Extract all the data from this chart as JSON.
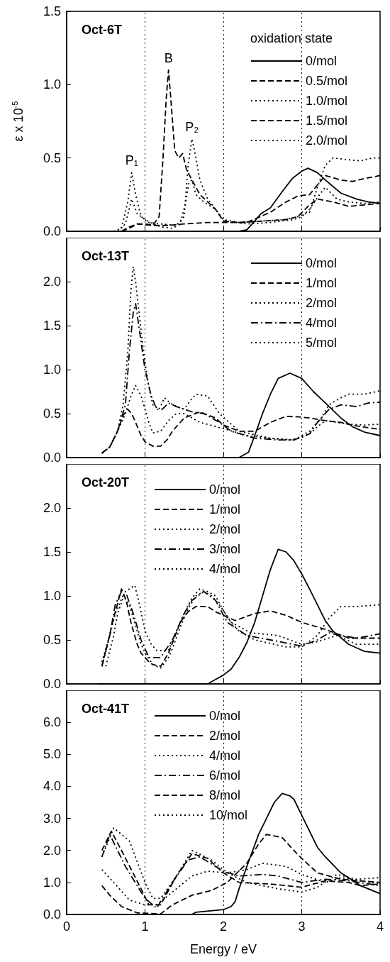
{
  "chart_data": [
    {
      "type": "line",
      "title": "Oct-6T",
      "ylabel": "ε x 10$^{-5}$",
      "legend_title": "oxidation state",
      "legend": "top right",
      "marker": "none",
      "grid": false,
      "tick_labels": "y",
      "xlim": [
        0,
        4
      ],
      "xticks": [
        0,
        1,
        2,
        3,
        4
      ],
      "ylim": [
        0,
        1.5
      ],
      "yticks": [
        {
          "value": 0,
          "label": "0.0"
        },
        {
          "value": 0.5,
          "label": "0.5"
        },
        {
          "value": 1,
          "label": "1.0"
        },
        {
          "value": 1.5,
          "label": "1.5"
        }
      ],
      "ref_lines": [
        {
          "axis": "x",
          "value": 1,
          "line_style": "dotted"
        },
        {
          "axis": "x",
          "value": 2,
          "line_style": "dotted"
        },
        {
          "axis": "x",
          "value": 3,
          "line_style": "dotted"
        }
      ],
      "annotations": [
        {
          "text": "P₁",
          "x": 0.83,
          "y": 0.4
        },
        {
          "text": "B",
          "x": 1.3,
          "y": 1.1
        },
        {
          "text": "P₂",
          "x": 1.6,
          "y": 0.63
        }
      ],
      "series": [
        {
          "name": "0/mol",
          "color": "#000000",
          "line_style": "solid",
          "x": [
            2.2,
            2.3,
            2.4,
            2.48,
            2.6,
            2.75,
            2.88,
            3.0,
            3.08,
            3.2,
            3.3,
            3.5,
            3.7,
            3.85,
            4.0
          ],
          "values": [
            0,
            0.01,
            0.07,
            0.12,
            0.16,
            0.27,
            0.36,
            0.41,
            0.43,
            0.4,
            0.35,
            0.26,
            0.22,
            0.2,
            0.19
          ]
        },
        {
          "name": "0.5/mol",
          "color": "#000000",
          "line_style": "dashed",
          "x": [
            0.7,
            0.8,
            0.9,
            1.1,
            1.3,
            1.5,
            1.8,
            2.0,
            2.3,
            2.6,
            2.8,
            2.95,
            3.1,
            3.3,
            3.5,
            3.65,
            3.8,
            4.0
          ],
          "values": [
            0,
            0.03,
            0.05,
            0.04,
            0.04,
            0.05,
            0.06,
            0.06,
            0.06,
            0.13,
            0.2,
            0.24,
            0.25,
            0.38,
            0.35,
            0.34,
            0.36,
            0.38
          ]
        },
        {
          "name": "1.0/mol",
          "color": "#000000",
          "line_style": "dotted",
          "x": [
            0.6,
            0.7,
            0.78,
            0.83,
            0.88,
            0.95,
            1.05,
            1.2,
            1.4,
            1.5,
            1.55,
            1.6,
            1.65,
            1.7,
            1.8,
            1.9,
            2.0,
            2.2,
            2.5,
            2.8,
            2.95,
            3.1,
            3.2,
            3.3,
            3.4,
            3.55,
            3.75,
            3.9,
            4.0
          ],
          "values": [
            0,
            0.02,
            0.2,
            0.4,
            0.25,
            0.1,
            0.06,
            0.05,
            0.04,
            0.1,
            0.45,
            0.63,
            0.5,
            0.35,
            0.22,
            0.15,
            0.08,
            0.06,
            0.07,
            0.08,
            0.1,
            0.13,
            0.3,
            0.45,
            0.5,
            0.49,
            0.48,
            0.5,
            0.5
          ]
        },
        {
          "name": "1.5/mol",
          "color": "#000000",
          "line_style": "dashed",
          "x": [
            0.7,
            0.8,
            0.9,
            1.0,
            1.1,
            1.18,
            1.23,
            1.27,
            1.3,
            1.33,
            1.38,
            1.43,
            1.48,
            1.53,
            1.6,
            1.7,
            1.8,
            1.9,
            2.0,
            2.2,
            2.5,
            2.8,
            2.95,
            3.1,
            3.2,
            3.4,
            3.6,
            3.8,
            4.0
          ],
          "values": [
            0,
            0.02,
            0.05,
            0.05,
            0.04,
            0.1,
            0.5,
            0.9,
            1.1,
            0.9,
            0.55,
            0.5,
            0.53,
            0.42,
            0.35,
            0.25,
            0.2,
            0.15,
            0.07,
            0.06,
            0.07,
            0.08,
            0.1,
            0.18,
            0.22,
            0.2,
            0.17,
            0.18,
            0.19
          ]
        },
        {
          "name": "2.0/mol",
          "color": "#000000",
          "line_style": "dotted",
          "x": [
            0.65,
            0.75,
            0.83,
            0.9,
            1.0,
            1.1,
            1.2,
            1.35,
            1.45,
            1.52,
            1.56,
            1.6,
            1.65,
            1.75,
            1.9,
            2.0,
            2.3,
            2.6,
            2.9,
            3.0,
            3.1,
            3.2,
            3.3,
            3.45,
            3.6,
            3.8,
            4.0
          ],
          "values": [
            0,
            0.05,
            0.22,
            0.12,
            0.08,
            0.05,
            0.03,
            0.02,
            0.05,
            0.2,
            0.33,
            0.35,
            0.25,
            0.2,
            0.15,
            0.07,
            0.05,
            0.06,
            0.08,
            0.1,
            0.15,
            0.23,
            0.3,
            0.22,
            0.2,
            0.19,
            0.2
          ]
        }
      ]
    },
    {
      "type": "line",
      "title": "Oct-13T",
      "legend": "top right",
      "marker": "none",
      "grid": false,
      "tick_labels": "y",
      "xlim": [
        0,
        4
      ],
      "xticks": [
        0,
        1,
        2,
        3,
        4
      ],
      "ylim": [
        0,
        2.5
      ],
      "yticks": [
        {
          "value": 0,
          "label": "0.0"
        },
        {
          "value": 0.5,
          "label": "0.5"
        },
        {
          "value": 1,
          "label": "1.0"
        },
        {
          "value": 1.5,
          "label": "1.5"
        },
        {
          "value": 2,
          "label": "2.0"
        }
      ],
      "ref_lines": [
        {
          "axis": "x",
          "value": 1,
          "line_style": "dotted"
        },
        {
          "axis": "x",
          "value": 2,
          "line_style": "dotted"
        },
        {
          "axis": "x",
          "value": 3,
          "line_style": "dotted"
        }
      ],
      "series": [
        {
          "name": "0/mol",
          "color": "#000000",
          "line_style": "solid",
          "x": [
            2.0,
            2.2,
            2.32,
            2.4,
            2.5,
            2.6,
            2.7,
            2.85,
            3.0,
            3.15,
            3.35,
            3.5,
            3.65,
            3.8,
            4.0
          ],
          "values": [
            0,
            0,
            0.06,
            0.25,
            0.5,
            0.72,
            0.9,
            0.96,
            0.9,
            0.75,
            0.58,
            0.45,
            0.35,
            0.29,
            0.25
          ]
        },
        {
          "name": "1/mol",
          "color": "#000000",
          "line_style": "dashed",
          "x": [
            0.45,
            0.55,
            0.65,
            0.72,
            0.78,
            0.83,
            0.88,
            0.95,
            1.0,
            1.1,
            1.2,
            1.28,
            1.35,
            1.5,
            1.7,
            1.9,
            2.0,
            2.2,
            2.4,
            2.6,
            2.8,
            3.0,
            3.1,
            3.3,
            3.5,
            3.7,
            4.0
          ],
          "values": [
            0.05,
            0.12,
            0.3,
            0.48,
            0.55,
            0.5,
            0.4,
            0.25,
            0.18,
            0.13,
            0.13,
            0.2,
            0.3,
            0.45,
            0.52,
            0.45,
            0.37,
            0.3,
            0.3,
            0.4,
            0.47,
            0.46,
            0.45,
            0.42,
            0.4,
            0.36,
            0.32
          ]
        },
        {
          "name": "2/mol",
          "color": "#000000",
          "line_style": "dotted",
          "x": [
            0.45,
            0.55,
            0.65,
            0.75,
            0.82,
            0.88,
            0.95,
            1.0,
            1.05,
            1.1,
            1.2,
            1.3,
            1.4,
            1.5,
            1.7,
            2.0,
            2.3,
            2.6,
            2.85,
            3.0,
            3.1,
            3.2,
            3.3,
            3.45,
            3.6,
            3.8,
            4.0
          ],
          "values": [
            0.05,
            0.12,
            0.3,
            0.5,
            0.7,
            0.82,
            0.7,
            0.55,
            0.4,
            0.28,
            0.3,
            0.42,
            0.5,
            0.5,
            0.4,
            0.33,
            0.25,
            0.22,
            0.2,
            0.23,
            0.27,
            0.35,
            0.42,
            0.4,
            0.38,
            0.37,
            0.38
          ]
        },
        {
          "name": "4/mol",
          "color": "#000000",
          "line_style": "dashdot",
          "x": [
            0.45,
            0.55,
            0.65,
            0.75,
            0.8,
            0.85,
            0.88,
            0.92,
            1.0,
            1.08,
            1.15,
            1.22,
            1.3,
            1.4,
            1.5,
            1.6,
            1.75,
            1.95,
            2.1,
            2.4,
            2.7,
            2.9,
            3.1,
            3.2,
            3.35,
            3.5,
            3.7,
            3.85,
            4.0
          ],
          "values": [
            0.05,
            0.12,
            0.3,
            0.6,
            1.2,
            1.65,
            1.75,
            1.5,
            1.0,
            0.7,
            0.55,
            0.55,
            0.62,
            0.58,
            0.55,
            0.52,
            0.5,
            0.4,
            0.3,
            0.22,
            0.2,
            0.2,
            0.27,
            0.4,
            0.55,
            0.6,
            0.58,
            0.62,
            0.63
          ]
        },
        {
          "name": "5/mol",
          "color": "#000000",
          "line_style": "dotted",
          "x": [
            0.45,
            0.55,
            0.65,
            0.72,
            0.78,
            0.82,
            0.85,
            0.88,
            0.93,
            0.98,
            1.05,
            1.1,
            1.18,
            1.25,
            1.32,
            1.4,
            1.5,
            1.58,
            1.65,
            1.8,
            1.95,
            2.2,
            2.6,
            2.9,
            3.1,
            3.25,
            3.35,
            3.5,
            3.6,
            3.8,
            4.0
          ],
          "values": [
            0.05,
            0.12,
            0.3,
            0.6,
            1.2,
            1.9,
            2.17,
            2.0,
            1.6,
            1.2,
            0.8,
            0.6,
            0.55,
            0.68,
            0.62,
            0.58,
            0.55,
            0.65,
            0.72,
            0.7,
            0.5,
            0.3,
            0.22,
            0.2,
            0.3,
            0.45,
            0.6,
            0.68,
            0.72,
            0.72,
            0.76
          ]
        }
      ]
    },
    {
      "type": "line",
      "title": "Oct-20T",
      "legend": "top",
      "marker": "none",
      "grid": false,
      "tick_labels": "y",
      "xlim": [
        0,
        4
      ],
      "xticks": [
        0,
        1,
        2,
        3,
        4
      ],
      "ylim": [
        0,
        2.5
      ],
      "yticks": [
        {
          "value": 0,
          "label": "0.0"
        },
        {
          "value": 0.5,
          "label": "0.5"
        },
        {
          "value": 1,
          "label": "1.0"
        },
        {
          "value": 1.5,
          "label": "1.5"
        },
        {
          "value": 2,
          "label": "2.0"
        }
      ],
      "ref_lines": [
        {
          "axis": "x",
          "value": 1,
          "line_style": "dotted"
        },
        {
          "axis": "x",
          "value": 2,
          "line_style": "dotted"
        },
        {
          "axis": "x",
          "value": 3,
          "line_style": "dotted"
        }
      ],
      "series": [
        {
          "name": "0/mol",
          "color": "#000000",
          "line_style": "solid",
          "x": [
            0.4,
            1.8,
            1.9,
            2.0,
            2.1,
            2.2,
            2.3,
            2.4,
            2.5,
            2.6,
            2.7,
            2.8,
            2.9,
            3.0,
            3.1,
            3.2,
            3.3,
            3.4,
            3.6,
            3.8,
            4.0
          ],
          "values": [
            0,
            0,
            0.05,
            0.1,
            0.17,
            0.3,
            0.47,
            0.7,
            1.0,
            1.3,
            1.53,
            1.5,
            1.4,
            1.25,
            1.08,
            0.9,
            0.72,
            0.6,
            0.45,
            0.37,
            0.35
          ]
        },
        {
          "name": "1/mol",
          "color": "#000000",
          "line_style": "dashed",
          "x": [
            0.45,
            0.52,
            0.6,
            0.7,
            0.76,
            0.82,
            0.9,
            0.95,
            1.05,
            1.1,
            1.2,
            1.3,
            1.45,
            1.55,
            1.65,
            1.8,
            1.9,
            2.0,
            2.15,
            2.4,
            2.6,
            2.8,
            3.0,
            3.3,
            3.6,
            4.0
          ],
          "values": [
            0.2,
            0.45,
            0.75,
            1.08,
            0.95,
            0.7,
            0.45,
            0.35,
            0.25,
            0.22,
            0.2,
            0.35,
            0.7,
            0.82,
            0.88,
            0.88,
            0.82,
            0.78,
            0.72,
            0.8,
            0.83,
            0.78,
            0.7,
            0.62,
            0.52,
            0.52
          ]
        },
        {
          "name": "2/mol",
          "color": "#000000",
          "line_style": "dotted",
          "x": [
            0.45,
            0.55,
            0.62,
            0.72,
            0.8,
            0.85,
            0.95,
            1.0,
            1.1,
            1.2,
            1.3,
            1.35,
            1.45,
            1.55,
            1.65,
            1.75,
            1.85,
            1.95,
            2.1,
            2.35,
            2.7,
            3.0,
            3.2,
            3.45,
            3.7,
            4.0
          ],
          "values": [
            0.25,
            0.55,
            0.8,
            1.0,
            0.9,
            0.75,
            0.45,
            0.35,
            0.22,
            0.18,
            0.3,
            0.4,
            0.65,
            0.85,
            1.0,
            1.05,
            1.0,
            0.9,
            0.7,
            0.58,
            0.55,
            0.45,
            0.48,
            0.55,
            0.45,
            0.45
          ]
        },
        {
          "name": "3/mol",
          "color": "#000000",
          "line_style": "dashdot",
          "x": [
            0.45,
            0.55,
            0.62,
            0.7,
            0.75,
            0.85,
            0.95,
            1.05,
            1.2,
            1.35,
            1.5,
            1.6,
            1.75,
            1.9,
            2.05,
            2.3,
            2.6,
            3.0,
            3.2,
            3.35,
            3.5,
            3.7,
            4.0
          ],
          "values": [
            0.2,
            0.55,
            0.9,
            1.05,
            1.05,
            0.8,
            0.5,
            0.3,
            0.3,
            0.5,
            0.8,
            0.95,
            1.05,
            0.95,
            0.7,
            0.55,
            0.5,
            0.43,
            0.5,
            0.58,
            0.55,
            0.52,
            0.57
          ]
        },
        {
          "name": "4/mol",
          "color": "#000000",
          "line_style": "dotted",
          "x": [
            0.5,
            0.6,
            0.65,
            0.75,
            0.87,
            0.93,
            1.0,
            1.08,
            1.15,
            1.3,
            1.4,
            1.5,
            1.6,
            1.7,
            1.8,
            1.9,
            2.05,
            2.2,
            2.4,
            2.8,
            3.0,
            3.2,
            3.35,
            3.5,
            3.7,
            4.0
          ],
          "values": [
            0.2,
            0.55,
            0.8,
            1.05,
            1.12,
            0.9,
            0.6,
            0.45,
            0.38,
            0.38,
            0.6,
            0.8,
            0.98,
            1.08,
            1.05,
            1.0,
            0.75,
            0.6,
            0.5,
            0.42,
            0.42,
            0.55,
            0.75,
            0.88,
            0.88,
            0.9
          ]
        }
      ]
    },
    {
      "type": "line",
      "title": "Oct-41T",
      "xlabel": "Energy / eV",
      "legend": "top",
      "marker": "none",
      "grid": false,
      "xlim": [
        0,
        4
      ],
      "xticks": [
        0,
        1,
        2,
        3,
        4
      ],
      "ylim": [
        0,
        7
      ],
      "yticks": [
        {
          "value": 0,
          "label": "0.0"
        },
        {
          "value": 1,
          "label": "1.0"
        },
        {
          "value": 2,
          "label": "2.0"
        },
        {
          "value": 3,
          "label": "3.0"
        },
        {
          "value": 4,
          "label": "4.0"
        },
        {
          "value": 5,
          "label": "5.0"
        },
        {
          "value": 6,
          "label": "6.0"
        }
      ],
      "ref_lines": [
        {
          "axis": "x",
          "value": 1,
          "line_style": "dotted"
        },
        {
          "axis": "x",
          "value": 2,
          "line_style": "dotted"
        },
        {
          "axis": "x",
          "value": 3,
          "line_style": "dotted"
        }
      ],
      "series": [
        {
          "name": "0/mol",
          "color": "#000000",
          "line_style": "solid",
          "x": [
            1.6,
            1.65,
            2.0,
            2.1,
            2.15,
            2.2,
            2.3,
            2.45,
            2.55,
            2.65,
            2.75,
            2.85,
            2.9,
            3.0,
            3.1,
            3.2,
            3.3,
            3.5,
            3.75,
            4.0
          ],
          "values": [
            0,
            0.07,
            0.15,
            0.25,
            0.4,
            0.8,
            1.5,
            2.5,
            3.0,
            3.5,
            3.78,
            3.7,
            3.6,
            3.1,
            2.6,
            2.1,
            1.8,
            1.3,
            0.9,
            0.65
          ]
        },
        {
          "name": "2/mol",
          "color": "#000000",
          "line_style": "dashed",
          "x": [
            0.45,
            0.55,
            0.7,
            0.9,
            1.2,
            1.35,
            1.6,
            1.85,
            2.05,
            2.3,
            2.45,
            2.55,
            2.75,
            2.9,
            3.0,
            3.2,
            3.5,
            4.0
          ],
          "values": [
            0.9,
            0.6,
            0.25,
            0.05,
            0.02,
            0.3,
            0.6,
            0.75,
            1.0,
            1.6,
            2.2,
            2.5,
            2.4,
            2.0,
            1.75,
            1.3,
            1.1,
            1.0
          ]
        },
        {
          "name": "4/mol",
          "color": "#000000",
          "line_style": "dotted",
          "x": [
            0.45,
            0.6,
            0.8,
            1.0,
            1.15,
            1.4,
            1.6,
            1.8,
            2.05,
            2.3,
            2.5,
            2.8,
            3.0,
            3.3,
            3.5,
            4.0
          ],
          "values": [
            1.4,
            1.0,
            0.45,
            0.3,
            0.3,
            0.8,
            1.2,
            1.35,
            1.3,
            1.4,
            1.6,
            1.5,
            1.25,
            1.0,
            1.15,
            0.95
          ]
        },
        {
          "name": "6/mol",
          "color": "#000000",
          "line_style": "dashdot",
          "x": [
            0.45,
            0.55,
            0.75,
            1.0,
            1.15,
            1.35,
            1.55,
            1.7,
            2.0,
            2.2,
            2.5,
            2.7,
            3.0,
            3.3,
            3.6,
            4.0
          ],
          "values": [
            1.8,
            2.5,
            1.5,
            0.5,
            0.2,
            1.0,
            1.7,
            1.8,
            1.35,
            1.2,
            1.25,
            1.2,
            1.0,
            1.1,
            1.05,
            0.9
          ]
        },
        {
          "name": "8/mol",
          "color": "#000000",
          "line_style": "dashed",
          "x": [
            0.45,
            0.57,
            0.7,
            0.95,
            1.05,
            1.2,
            1.4,
            1.6,
            1.8,
            2.0,
            2.2,
            2.6,
            3.0,
            3.3,
            3.6,
            3.75,
            4.0
          ],
          "values": [
            2.0,
            2.6,
            2.0,
            0.8,
            0.3,
            0.3,
            1.2,
            1.9,
            1.75,
            1.3,
            1.0,
            0.95,
            0.85,
            1.05,
            1.0,
            0.9,
            0.95
          ]
        },
        {
          "name": "10/mol",
          "color": "#000000",
          "line_style": "dotted",
          "x": [
            0.45,
            0.6,
            0.8,
            1.0,
            1.1,
            1.2,
            1.4,
            1.6,
            1.85,
            2.05,
            2.3,
            2.7,
            3.0,
            3.2,
            3.45,
            3.7,
            4.0
          ],
          "values": [
            1.8,
            2.7,
            2.3,
            1.0,
            0.5,
            0.5,
            1.2,
            2.0,
            1.7,
            1.3,
            1.0,
            0.8,
            0.7,
            0.85,
            1.25,
            1.1,
            1.15
          ]
        }
      ]
    }
  ]
}
